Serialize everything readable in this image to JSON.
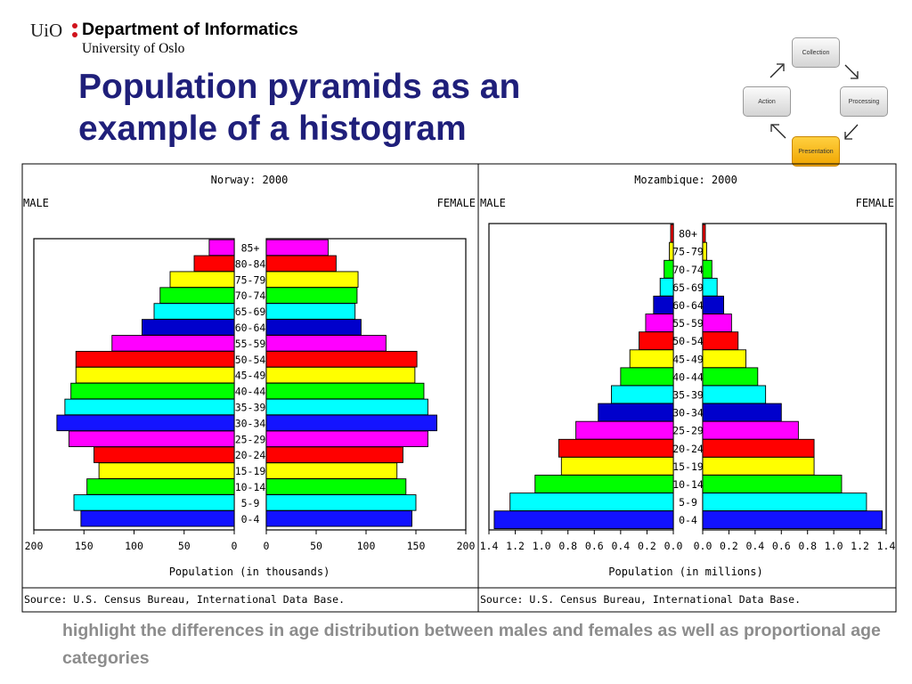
{
  "header": {
    "uio": "UiO",
    "department": "Department of Informatics",
    "university": "University of Oslo"
  },
  "slide_title": [
    "Population pyramids as an",
    "example of a histogram"
  ],
  "cycle": {
    "collection": "Collection",
    "processing": "Processing",
    "presentation": "Presentation",
    "action": "Action",
    "active": "Presentation",
    "active_color": "#f5b800"
  },
  "caption": "highlight the differences in age distribution between males and females as well as proportional age categories",
  "colors": {
    "cycle": [
      "#0000ff",
      "#00ffff",
      "#00ff00",
      "#ffff00",
      "#ff0000",
      "#ff00ff",
      "#000099"
    ],
    "norway": [
      "#1212ff",
      "#00ffff",
      "#00ff00",
      "#ffff00",
      "#ff0000",
      "#ff00ff",
      "#1414ff",
      "#00ffff",
      "#00ff00",
      "#ffff00",
      "#ff0000",
      "#ff00ff",
      "#0000cc",
      "#00ffff",
      "#00ff00",
      "#ffff00",
      "#ff0000",
      "#ff00ff"
    ],
    "mozambique": [
      "#1212ff",
      "#00ffff",
      "#00ff00",
      "#ffff00",
      "#ff0000",
      "#ff00ff",
      "#0000cc",
      "#00ffff",
      "#00ff00",
      "#ffff00",
      "#ff0000",
      "#ff00ff",
      "#0000cc",
      "#00ffff",
      "#00ff00",
      "#ffff00",
      "#ff0000"
    ]
  },
  "chart_data": [
    {
      "type": "bar",
      "orientation": "horizontal",
      "title": "Norway: 2000",
      "left_label": "MALE",
      "right_label": "FEMALE",
      "xlabel": "Population (in thousands)",
      "source": "Source: U.S. Census Bureau, International Data Base.",
      "xlim": [
        0,
        200
      ],
      "ticks_left": [
        "200",
        "150",
        "100",
        "50",
        "0"
      ],
      "ticks_right": [
        "0",
        "50",
        "100",
        "150",
        "200"
      ],
      "categories": [
        "0-4",
        "5-9",
        "10-14",
        "15-19",
        "20-24",
        "25-29",
        "30-34",
        "35-39",
        "40-44",
        "45-49",
        "50-54",
        "55-59",
        "60-64",
        "65-69",
        "70-74",
        "75-79",
        "80-84",
        "85+"
      ],
      "series": [
        {
          "name": "MALE",
          "values": [
            153,
            160,
            147,
            135,
            140,
            165,
            177,
            169,
            163,
            158,
            158,
            122,
            92,
            80,
            74,
            64,
            40,
            25
          ]
        },
        {
          "name": "FEMALE",
          "values": [
            146,
            150,
            140,
            131,
            137,
            162,
            171,
            162,
            158,
            149,
            151,
            120,
            95,
            89,
            91,
            92,
            70,
            62
          ]
        }
      ]
    },
    {
      "type": "bar",
      "orientation": "horizontal",
      "title": "Mozambique: 2000",
      "left_label": "MALE",
      "right_label": "FEMALE",
      "xlabel": "Population (in millions)",
      "source": "Source: U.S. Census Bureau, International Data Base.",
      "xlim": [
        0,
        1.4
      ],
      "ticks_left": [
        "1.4",
        "1.2",
        "1.0",
        "0.8",
        "0.6",
        "0.4",
        "0.2",
        "0.0"
      ],
      "ticks_right": [
        "0.0",
        "0.2",
        "0.4",
        "0.6",
        "0.8",
        "1.0",
        "1.2",
        "1.4"
      ],
      "categories": [
        "0-4",
        "5-9",
        "10-14",
        "15-19",
        "20-24",
        "25-29",
        "30-34",
        "35-39",
        "40-44",
        "45-49",
        "50-54",
        "55-59",
        "60-64",
        "65-69",
        "70-74",
        "75-79",
        "80+"
      ],
      "series": [
        {
          "name": "MALE",
          "values": [
            1.36,
            1.24,
            1.05,
            0.85,
            0.87,
            0.74,
            0.57,
            0.47,
            0.4,
            0.33,
            0.26,
            0.21,
            0.15,
            0.1,
            0.07,
            0.03,
            0.02
          ]
        },
        {
          "name": "FEMALE",
          "values": [
            1.37,
            1.25,
            1.06,
            0.85,
            0.85,
            0.73,
            0.6,
            0.48,
            0.42,
            0.33,
            0.27,
            0.22,
            0.16,
            0.11,
            0.07,
            0.03,
            0.02
          ]
        }
      ]
    }
  ]
}
